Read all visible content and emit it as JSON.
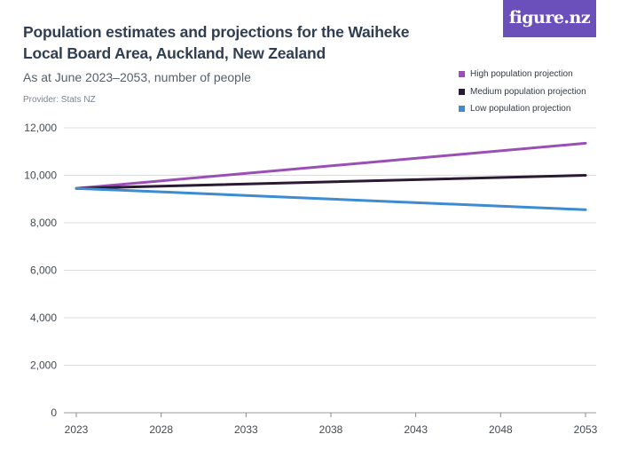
{
  "header": {
    "title": "Population estimates and projections for the Waiheke Local Board Area, Auckland, New Zealand",
    "subtitle": "As at June 2023–2053, number of people",
    "provider": "Provider: Stats NZ",
    "logo_text": "figure.nz"
  },
  "chart_data": {
    "type": "line",
    "x": [
      2023,
      2053
    ],
    "xticks": [
      "2023",
      "2028",
      "2033",
      "2038",
      "2043",
      "2048",
      "2053"
    ],
    "ylim": [
      0,
      12000
    ],
    "yticks": [
      "0",
      "2,000",
      "4,000",
      "6,000",
      "8,000",
      "10,000",
      "12,000"
    ],
    "grid": true,
    "legend_position": "top-right",
    "series": [
      {
        "name": "High population projection",
        "color": "#9b4fb5",
        "values": [
          9450,
          11350
        ]
      },
      {
        "name": "Medium population projection",
        "color": "#2b1a33",
        "values": [
          9450,
          10000
        ]
      },
      {
        "name": "Low population projection",
        "color": "#3d8bd1",
        "values": [
          9450,
          8550
        ]
      }
    ]
  }
}
